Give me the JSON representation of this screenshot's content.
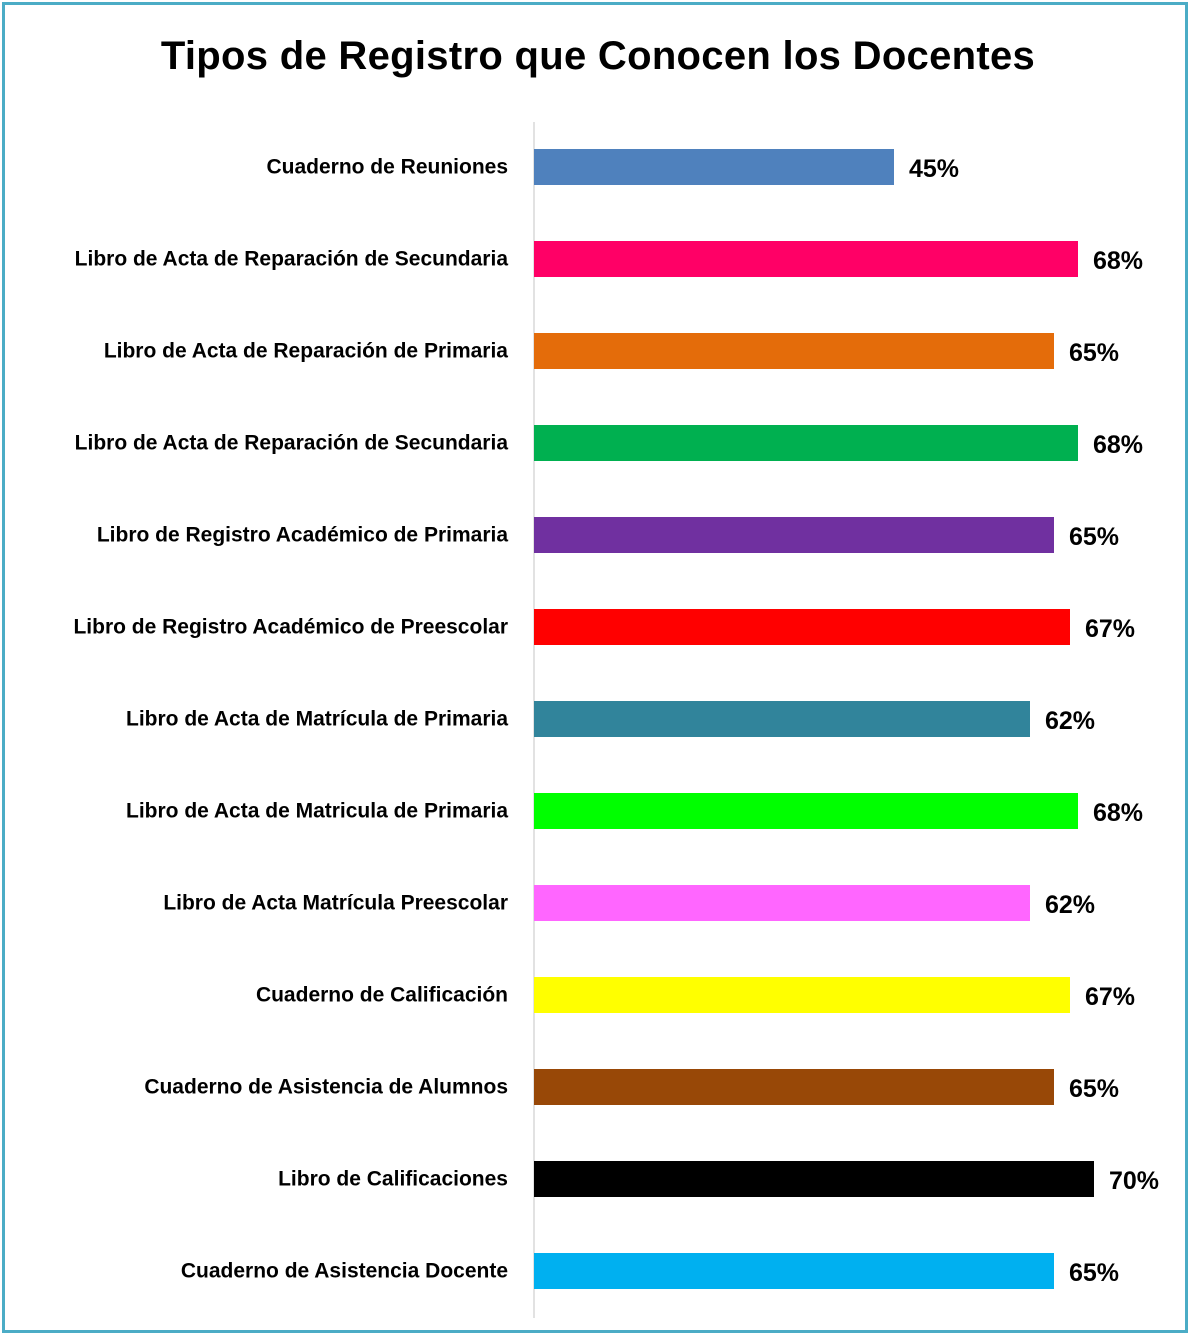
{
  "chart_data": {
    "type": "bar",
    "orientation": "horizontal",
    "title": "Tipos de Registro que Conocen los Docentes",
    "xlabel": "",
    "ylabel": "",
    "xlim": [
      0,
      0.7
    ],
    "grid": false,
    "legend": "none",
    "value_format": "percent",
    "categories": [
      "Cuaderno de Reuniones",
      "Libro de Acta de Reparación de Secundaria",
      "Libro de Acta de Reparación de Primaria",
      "Libro de Acta de Reparación de Secundaria",
      "Libro de Registro Académico de Primaria",
      "Libro de Registro Académico de Preescolar",
      "Libro de Acta de Matrícula de Primaria",
      "Libro de Acta de Matricula de Primaria",
      "Libro de Acta Matrícula Preescolar",
      "Cuaderno de Calificación",
      "Cuaderno de Asistencia de Alumnos",
      "Libro de  Calificaciones",
      "Cuaderno de Asistencia Docente"
    ],
    "values": [
      0.45,
      0.68,
      0.65,
      0.68,
      0.65,
      0.67,
      0.62,
      0.68,
      0.62,
      0.67,
      0.65,
      0.7,
      0.65
    ],
    "value_labels": [
      "45%",
      "68%",
      "65%",
      "68%",
      "65%",
      "67%",
      "62%",
      "68%",
      "62%",
      "67%",
      "65%",
      "70%",
      "65%"
    ],
    "colors": [
      "#4f81bd",
      "#ff0066",
      "#e46c0a",
      "#00b050",
      "#7030a0",
      "#ff0000",
      "#31849b",
      "#00ff00",
      "#ff66ff",
      "#ffff00",
      "#984807",
      "#000000",
      "#00b0f0"
    ],
    "frame_color": "#4bacc6",
    "axis_color": "#d9d9d9"
  }
}
